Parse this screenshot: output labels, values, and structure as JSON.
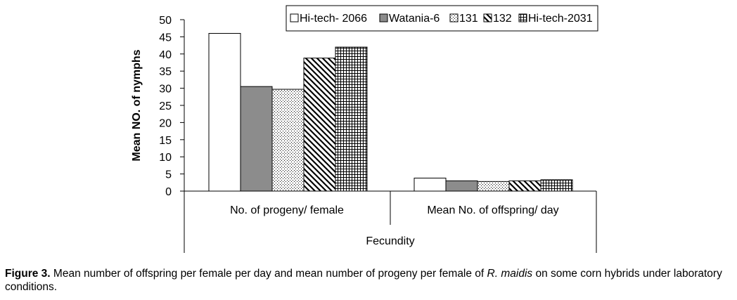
{
  "chart_data": {
    "type": "bar",
    "title": "",
    "ylabel": "Mean NO. of nymphs",
    "xlabel": "Fecundity",
    "ylim": [
      0,
      50
    ],
    "yticks": [
      0,
      5,
      10,
      15,
      20,
      25,
      30,
      35,
      40,
      45,
      50
    ],
    "categories": [
      "No. of progeny/ female",
      "Mean No. of offspring/ day"
    ],
    "series": [
      {
        "name": "Hi-tech- 2066",
        "values": [
          46,
          3.8
        ]
      },
      {
        "name": "Watania-6",
        "values": [
          30.5,
          3.0
        ]
      },
      {
        "name": "131",
        "values": [
          29.7,
          2.8
        ]
      },
      {
        "name": "132",
        "values": [
          38.8,
          3.0
        ]
      },
      {
        "name": "Hi-tech-2031",
        "values": [
          42,
          3.3
        ]
      }
    ],
    "grid": false,
    "legend": "top"
  },
  "caption": {
    "label": "Figure 3.",
    "text_before": " Mean number of offspring per female per day and mean number of progeny per female of ",
    "species": "R. maidis",
    "text_after": " on some corn hybrids under laboratory conditions."
  }
}
